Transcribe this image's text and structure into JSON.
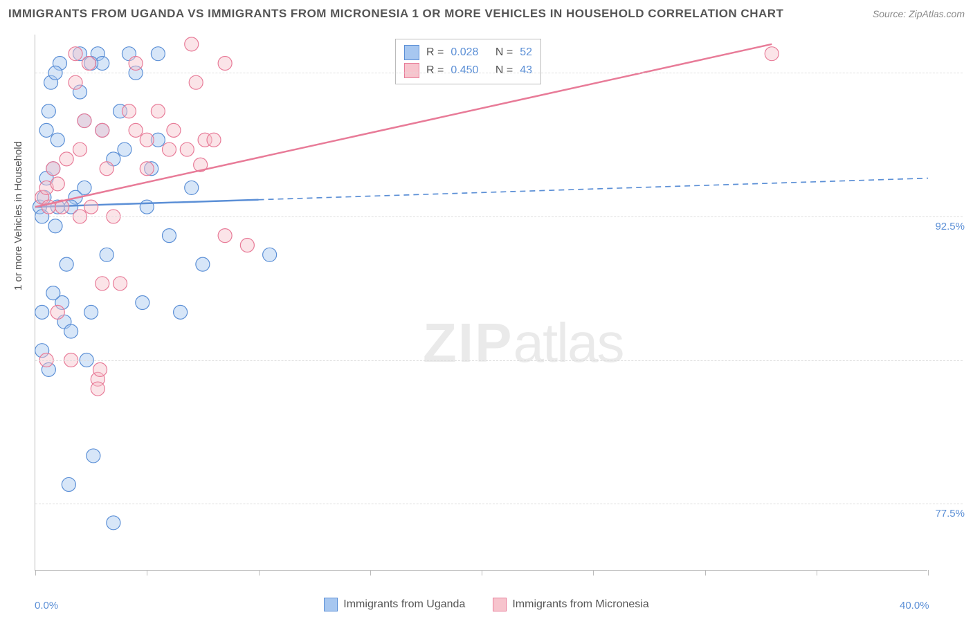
{
  "title": "IMMIGRANTS FROM UGANDA VS IMMIGRANTS FROM MICRONESIA 1 OR MORE VEHICLES IN HOUSEHOLD CORRELATION CHART",
  "source": "Source: ZipAtlas.com",
  "watermark_zip": "ZIP",
  "watermark_atlas": "atlas",
  "y_axis_label": "1 or more Vehicles in Household",
  "chart": {
    "type": "scatter",
    "background_color": "#ffffff",
    "grid_color": "#dddddd",
    "axis_color": "#bbbbbb",
    "xlim": [
      0,
      40
    ],
    "ylim": [
      74,
      102
    ],
    "x_ticks": [
      0,
      5,
      10,
      15,
      20,
      25,
      30,
      35,
      40
    ],
    "y_ticks": [
      77.5,
      85.0,
      92.5,
      100.0
    ],
    "x_tick_labels": {
      "0": "0.0%",
      "40": "40.0%"
    },
    "y_tick_labels": {
      "77.5": "77.5%",
      "85.0": "85.0%",
      "92.5": "92.5%",
      "100.0": "100.0%"
    },
    "marker_radius": 10,
    "marker_fill_opacity": 0.45,
    "marker_stroke_width": 1.2
  },
  "series": {
    "uganda": {
      "label": "Immigrants from Uganda",
      "fill_color": "#a7c7f0",
      "stroke_color": "#5b8fd6",
      "R": "0.028",
      "N": "52",
      "trend": {
        "x1": 0,
        "y1": 93.0,
        "x2": 40,
        "y2": 94.5,
        "solid_until_x": 10,
        "stroke_width": 2.5
      },
      "points": [
        [
          0.2,
          93.0
        ],
        [
          0.3,
          92.5
        ],
        [
          0.4,
          93.5
        ],
        [
          0.5,
          94.5
        ],
        [
          0.5,
          97.0
        ],
        [
          0.6,
          98.0
        ],
        [
          0.7,
          99.5
        ],
        [
          0.8,
          95.0
        ],
        [
          0.9,
          92.0
        ],
        [
          1.0,
          96.5
        ],
        [
          1.1,
          100.5
        ],
        [
          1.2,
          88.0
        ],
        [
          1.3,
          87.0
        ],
        [
          1.4,
          90.0
        ],
        [
          1.5,
          78.5
        ],
        [
          1.6,
          86.5
        ],
        [
          1.8,
          93.5
        ],
        [
          2.0,
          99.0
        ],
        [
          2.0,
          101.0
        ],
        [
          2.2,
          94.0
        ],
        [
          2.3,
          85.0
        ],
        [
          2.5,
          87.5
        ],
        [
          2.6,
          80.0
        ],
        [
          2.8,
          101.0
        ],
        [
          3.0,
          100.5
        ],
        [
          3.0,
          97.0
        ],
        [
          3.2,
          90.5
        ],
        [
          3.5,
          76.5
        ],
        [
          3.5,
          95.5
        ],
        [
          3.8,
          98.0
        ],
        [
          4.0,
          96.0
        ],
        [
          4.2,
          101.0
        ],
        [
          4.5,
          100.0
        ],
        [
          4.8,
          88.0
        ],
        [
          5.0,
          93.0
        ],
        [
          5.2,
          95.0
        ],
        [
          5.5,
          101.0
        ],
        [
          5.5,
          96.5
        ],
        [
          6.0,
          91.5
        ],
        [
          6.5,
          87.5
        ],
        [
          7.0,
          94.0
        ],
        [
          7.5,
          90.0
        ],
        [
          10.5,
          90.5
        ],
        [
          0.3,
          87.5
        ],
        [
          0.3,
          85.5
        ],
        [
          0.6,
          84.5
        ],
        [
          1.6,
          93.0
        ],
        [
          0.8,
          88.5
        ],
        [
          0.9,
          100.0
        ],
        [
          1.0,
          93.0
        ],
        [
          2.5,
          100.5
        ],
        [
          2.2,
          97.5
        ]
      ]
    },
    "micronesia": {
      "label": "Immigrants from Micronesia",
      "fill_color": "#f7c4cd",
      "stroke_color": "#e87b98",
      "R": "0.450",
      "N": "43",
      "trend": {
        "x1": 0,
        "y1": 93.0,
        "x2": 33,
        "y2": 101.5,
        "solid_until_x": 33,
        "stroke_width": 2.5
      },
      "points": [
        [
          0.3,
          93.5
        ],
        [
          0.5,
          94.0
        ],
        [
          0.6,
          93.0
        ],
        [
          0.8,
          95.0
        ],
        [
          1.0,
          94.2
        ],
        [
          1.0,
          87.5
        ],
        [
          1.2,
          93.0
        ],
        [
          1.4,
          95.5
        ],
        [
          1.6,
          85.0
        ],
        [
          1.8,
          99.5
        ],
        [
          1.8,
          101.0
        ],
        [
          2.0,
          96.0
        ],
        [
          2.2,
          97.5
        ],
        [
          2.4,
          100.5
        ],
        [
          2.5,
          93.0
        ],
        [
          2.8,
          84.0
        ],
        [
          2.8,
          83.5
        ],
        [
          3.0,
          89.0
        ],
        [
          3.0,
          97.0
        ],
        [
          3.2,
          95.0
        ],
        [
          3.5,
          92.5
        ],
        [
          3.8,
          89.0
        ],
        [
          4.2,
          98.0
        ],
        [
          4.5,
          97.0
        ],
        [
          5.0,
          96.5
        ],
        [
          5.0,
          95.0
        ],
        [
          5.5,
          98.0
        ],
        [
          6.0,
          96.0
        ],
        [
          6.2,
          97.0
        ],
        [
          6.8,
          96.0
        ],
        [
          7.0,
          101.5
        ],
        [
          7.2,
          99.5
        ],
        [
          7.6,
          96.5
        ],
        [
          8.0,
          96.5
        ],
        [
          8.5,
          100.5
        ],
        [
          8.5,
          91.5
        ],
        [
          9.5,
          91.0
        ],
        [
          7.4,
          95.2
        ],
        [
          33.0,
          101.0
        ],
        [
          0.5,
          85.0
        ],
        [
          2.0,
          92.5
        ],
        [
          4.5,
          100.5
        ],
        [
          2.9,
          84.5
        ]
      ]
    }
  },
  "stats_box_labels": {
    "R": "R =",
    "N": "N ="
  }
}
